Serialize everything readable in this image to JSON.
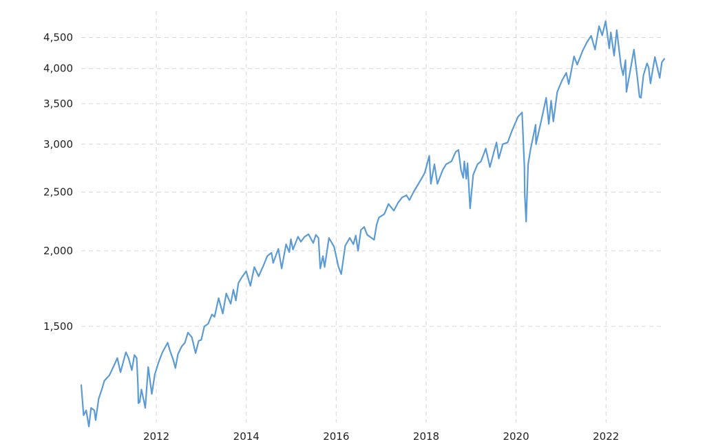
{
  "chart_data": {
    "type": "line",
    "title": "",
    "xlabel": "",
    "ylabel": "",
    "y_scale": "log",
    "grid": true,
    "legend": "none",
    "colors": {
      "line": "#5b9bd5",
      "grid": "#d6d6d6",
      "text": "#222222"
    },
    "xlim": [
      "2010-05-01",
      "2023-04-20"
    ],
    "ylim": [
      1040,
      4800
    ],
    "x_ticks": [
      {
        "date": "2012-01-01",
        "label": "2012"
      },
      {
        "date": "2014-01-01",
        "label": "2014"
      },
      {
        "date": "2016-01-01",
        "label": "2016"
      },
      {
        "date": "2018-01-01",
        "label": "2018"
      },
      {
        "date": "2020-01-01",
        "label": "2020"
      },
      {
        "date": "2022-01-01",
        "label": "2022"
      }
    ],
    "y_ticks": [
      {
        "value": 1500,
        "label": "1,500"
      },
      {
        "value": 2000,
        "label": "2,000"
      },
      {
        "value": 2500,
        "label": "2,500"
      },
      {
        "value": 3000,
        "label": "3,000"
      },
      {
        "value": 3500,
        "label": "3,500"
      },
      {
        "value": 4000,
        "label": "4,000"
      },
      {
        "value": 4500,
        "label": "4,500"
      }
    ],
    "series": [
      {
        "x": [
          "2010-05-01",
          "2010-05-20",
          "2010-06-10",
          "2010-07-02",
          "2010-07-20",
          "2010-08-15",
          "2010-08-26",
          "2010-09-20",
          "2010-10-15",
          "2010-11-05",
          "2010-12-15",
          "2011-01-20",
          "2011-02-18",
          "2011-03-16",
          "2011-04-29",
          "2011-05-20",
          "2011-06-16",
          "2011-07-07",
          "2011-07-25",
          "2011-08-05",
          "2011-08-08",
          "2011-08-19",
          "2011-09-02",
          "2011-09-22",
          "2011-10-03",
          "2011-10-27",
          "2011-11-25",
          "2011-12-20",
          "2012-01-20",
          "2012-02-20",
          "2012-04-02",
          "2012-04-20",
          "2012-05-18",
          "2012-06-04",
          "2012-06-25",
          "2012-07-25",
          "2012-08-20",
          "2012-09-14",
          "2012-10-15",
          "2012-11-15",
          "2012-12-10",
          "2012-12-31",
          "2013-01-25",
          "2013-02-25",
          "2013-03-28",
          "2013-04-18",
          "2013-05-21",
          "2013-06-24",
          "2013-07-22",
          "2013-08-27",
          "2013-09-18",
          "2013-10-08",
          "2013-10-29",
          "2013-11-27",
          "2013-12-31",
          "2014-02-03",
          "2014-03-07",
          "2014-04-11",
          "2014-05-20",
          "2014-06-20",
          "2014-07-24",
          "2014-08-07",
          "2014-09-18",
          "2014-10-15",
          "2014-11-20",
          "2014-12-16",
          "2014-12-29",
          "2015-01-15",
          "2015-02-25",
          "2015-03-20",
          "2015-04-20",
          "2015-05-21",
          "2015-06-29",
          "2015-07-20",
          "2015-08-10",
          "2015-08-25",
          "2015-09-15",
          "2015-09-29",
          "2015-11-03",
          "2015-12-15",
          "2016-01-20",
          "2016-02-11",
          "2016-03-15",
          "2016-04-20",
          "2016-05-20",
          "2016-06-08",
          "2016-06-27",
          "2016-07-20",
          "2016-08-15",
          "2016-09-09",
          "2016-11-04",
          "2016-11-25",
          "2016-12-13",
          "2017-01-26",
          "2017-03-01",
          "2017-04-13",
          "2017-05-17",
          "2017-06-20",
          "2017-07-25",
          "2017-08-18",
          "2017-09-20",
          "2017-10-25",
          "2017-11-28",
          "2017-12-20",
          "2018-01-26",
          "2018-02-08",
          "2018-03-09",
          "2018-04-02",
          "2018-05-15",
          "2018-06-12",
          "2018-07-25",
          "2018-08-29",
          "2018-09-20",
          "2018-10-11",
          "2018-10-29",
          "2018-11-07",
          "2018-11-23",
          "2018-12-03",
          "2018-12-24",
          "2019-01-18",
          "2019-02-22",
          "2019-03-22",
          "2019-04-30",
          "2019-06-03",
          "2019-07-26",
          "2019-08-14",
          "2019-09-15",
          "2019-10-25",
          "2019-11-27",
          "2020-01-17",
          "2020-02-19",
          "2020-03-09",
          "2020-03-12",
          "2020-03-23",
          "2020-04-08",
          "2020-04-29",
          "2020-06-08",
          "2020-06-11",
          "2020-07-20",
          "2020-09-02",
          "2020-09-23",
          "2020-10-12",
          "2020-10-30",
          "2020-12-01",
          "2021-01-08",
          "2021-02-12",
          "2021-03-04",
          "2021-04-16",
          "2021-05-12",
          "2021-06-25",
          "2021-07-30",
          "2021-09-02",
          "2021-10-04",
          "2021-11-05",
          "2021-12-01",
          "2021-12-29",
          "2022-01-27",
          "2022-02-09",
          "2022-03-08",
          "2022-03-29",
          "2022-05-02",
          "2022-05-20",
          "2022-06-08",
          "2022-06-16",
          "2022-07-20",
          "2022-08-16",
          "2022-09-12",
          "2022-09-30",
          "2022-10-12",
          "2022-11-01",
          "2022-11-30",
          "2022-12-13",
          "2022-12-28",
          "2023-02-02",
          "2023-03-13",
          "2023-03-31",
          "2023-04-20"
        ],
        "y": [
          1200,
          1070,
          1090,
          1025,
          1100,
          1090,
          1050,
          1140,
          1180,
          1220,
          1245,
          1290,
          1330,
          1260,
          1360,
          1330,
          1270,
          1345,
          1330,
          1200,
          1120,
          1125,
          1180,
          1130,
          1100,
          1285,
          1160,
          1250,
          1310,
          1360,
          1410,
          1370,
          1320,
          1280,
          1350,
          1390,
          1410,
          1465,
          1440,
          1355,
          1420,
          1425,
          1500,
          1515,
          1570,
          1555,
          1670,
          1575,
          1700,
          1635,
          1725,
          1655,
          1770,
          1810,
          1850,
          1750,
          1880,
          1815,
          1890,
          1960,
          1985,
          1910,
          2015,
          1870,
          2050,
          1990,
          2090,
          2010,
          2110,
          2070,
          2110,
          2130,
          2060,
          2125,
          2100,
          1870,
          1960,
          1880,
          2100,
          2030,
          1880,
          1830,
          2040,
          2100,
          2050,
          2120,
          2000,
          2165,
          2190,
          2125,
          2085,
          2210,
          2270,
          2300,
          2390,
          2330,
          2400,
          2450,
          2470,
          2425,
          2500,
          2570,
          2640,
          2690,
          2870,
          2580,
          2780,
          2580,
          2720,
          2780,
          2810,
          2915,
          2935,
          2720,
          2640,
          2810,
          2630,
          2790,
          2350,
          2670,
          2780,
          2810,
          2950,
          2750,
          3020,
          2840,
          3000,
          3020,
          3150,
          3330,
          3385,
          2750,
          2480,
          2235,
          2780,
          2950,
          3230,
          3000,
          3255,
          3580,
          3240,
          3540,
          3270,
          3660,
          3820,
          3935,
          3770,
          4190,
          4060,
          4280,
          4420,
          4530,
          4300,
          4700,
          4540,
          4790,
          4320,
          4590,
          4200,
          4630,
          4050,
          3900,
          4130,
          3660,
          4000,
          4300,
          3870,
          3590,
          3580,
          3900,
          4080,
          4020,
          3780,
          4180,
          3860,
          4100,
          4150
        ]
      }
    ]
  }
}
